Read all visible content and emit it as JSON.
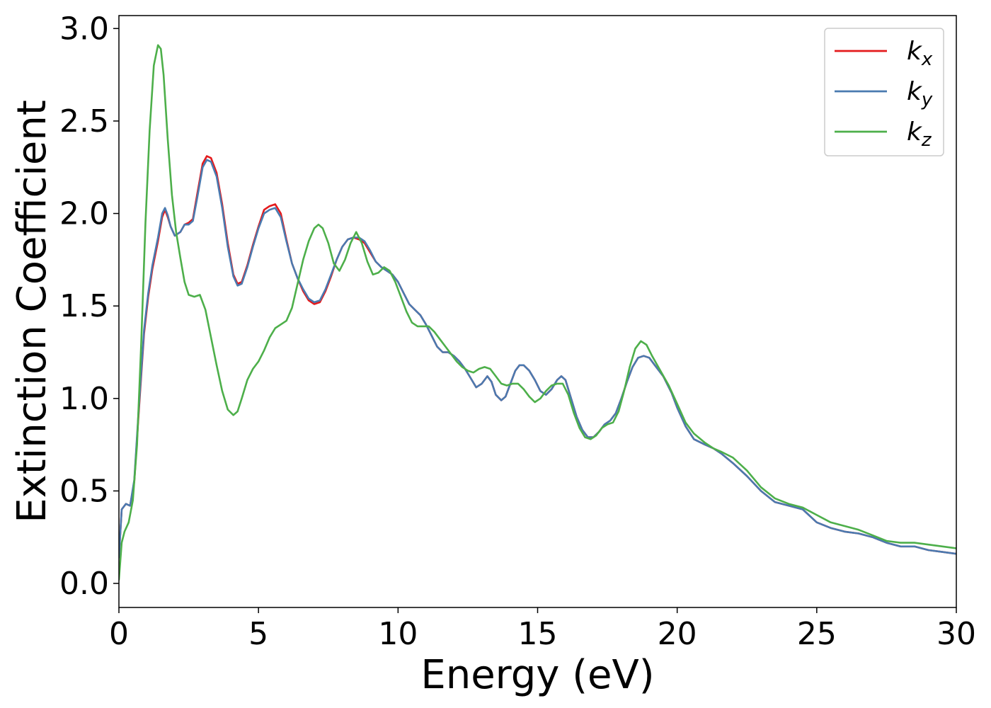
{
  "chart_data": {
    "type": "line",
    "title": "",
    "xlabel": "Energy (eV)",
    "ylabel": "Extinction Coefficient",
    "xlim": [
      0,
      30
    ],
    "ylim": [
      -0.13,
      3.07
    ],
    "xticks": [
      0,
      5,
      10,
      15,
      20,
      25,
      30
    ],
    "yticks": [
      0.0,
      0.5,
      1.0,
      1.5,
      2.0,
      2.5,
      3.0
    ],
    "xtick_labels": [
      "0",
      "5",
      "10",
      "15",
      "20",
      "25",
      "30"
    ],
    "ytick_labels": [
      "0.0",
      "0.5",
      "1.0",
      "1.5",
      "2.0",
      "2.5",
      "3.0"
    ],
    "grid": false,
    "legend_position": "top-right",
    "series": [
      {
        "name": "k",
        "subscript": "x",
        "color": "#e41a1c",
        "x": [
          0,
          0.1,
          0.25,
          0.4,
          0.55,
          0.7,
          0.9,
          1.05,
          1.2,
          1.4,
          1.55,
          1.65,
          1.75,
          1.85,
          2.0,
          2.2,
          2.35,
          2.5,
          2.65,
          2.8,
          3.0,
          3.15,
          3.3,
          3.5,
          3.7,
          3.9,
          4.1,
          4.25,
          4.4,
          4.6,
          4.8,
          5.0,
          5.2,
          5.4,
          5.6,
          5.8,
          6.0,
          6.2,
          6.4,
          6.6,
          6.8,
          7.0,
          7.2,
          7.4,
          7.6,
          7.8,
          8.0,
          8.2,
          8.4,
          8.6,
          8.8,
          9.0,
          9.2,
          9.4,
          9.6,
          9.8,
          10.0,
          10.2,
          10.4,
          10.6,
          10.8,
          11.0,
          11.2,
          11.4,
          11.6,
          11.8,
          12.0,
          12.2,
          12.4,
          12.6,
          12.8,
          13.0,
          13.2,
          13.35,
          13.5,
          13.7,
          13.85,
          14.0,
          14.2,
          14.35,
          14.5,
          14.7,
          14.9,
          15.1,
          15.3,
          15.5,
          15.7,
          15.85,
          16.0,
          16.2,
          16.4,
          16.6,
          16.8,
          17.0,
          17.2,
          17.4,
          17.6,
          17.8,
          18.0,
          18.2,
          18.4,
          18.6,
          18.8,
          19.0,
          19.2,
          19.5,
          19.8,
          20.0,
          20.3,
          20.6,
          21.0,
          21.3,
          21.6,
          22.0,
          22.5,
          23.0,
          23.5,
          24.0,
          24.5,
          25.0,
          25.5,
          26.0,
          26.5,
          27.0,
          27.5,
          28.0,
          28.5,
          29.0,
          29.5,
          30.0
        ],
        "y": [
          0.14,
          0.4,
          0.43,
          0.42,
          0.55,
          0.9,
          1.35,
          1.55,
          1.7,
          1.85,
          1.98,
          2.02,
          1.98,
          1.93,
          1.88,
          1.9,
          1.94,
          1.95,
          1.97,
          2.1,
          2.27,
          2.31,
          2.3,
          2.22,
          2.05,
          1.84,
          1.67,
          1.62,
          1.63,
          1.72,
          1.83,
          1.93,
          2.02,
          2.04,
          2.05,
          2.0,
          1.86,
          1.73,
          1.65,
          1.58,
          1.53,
          1.51,
          1.52,
          1.58,
          1.66,
          1.75,
          1.82,
          1.86,
          1.87,
          1.86,
          1.84,
          1.79,
          1.74,
          1.71,
          1.69,
          1.67,
          1.63,
          1.57,
          1.51,
          1.48,
          1.45,
          1.4,
          1.34,
          1.28,
          1.25,
          1.25,
          1.23,
          1.2,
          1.16,
          1.11,
          1.06,
          1.08,
          1.12,
          1.09,
          1.02,
          0.99,
          1.01,
          1.07,
          1.15,
          1.18,
          1.18,
          1.15,
          1.1,
          1.04,
          1.02,
          1.05,
          1.1,
          1.12,
          1.1,
          1.0,
          0.9,
          0.83,
          0.79,
          0.79,
          0.82,
          0.86,
          0.88,
          0.92,
          1.0,
          1.09,
          1.17,
          1.22,
          1.23,
          1.22,
          1.18,
          1.12,
          1.03,
          0.95,
          0.85,
          0.78,
          0.75,
          0.73,
          0.7,
          0.65,
          0.58,
          0.5,
          0.44,
          0.42,
          0.4,
          0.33,
          0.3,
          0.28,
          0.27,
          0.25,
          0.22,
          0.2,
          0.2,
          0.18,
          0.17,
          0.16
        ]
      },
      {
        "name": "k",
        "subscript": "y",
        "color": "#4a7ab0",
        "x": [
          0,
          0.1,
          0.25,
          0.4,
          0.55,
          0.7,
          0.9,
          1.05,
          1.2,
          1.4,
          1.55,
          1.65,
          1.75,
          1.85,
          2.0,
          2.2,
          2.35,
          2.5,
          2.65,
          2.8,
          3.0,
          3.15,
          3.3,
          3.5,
          3.7,
          3.9,
          4.1,
          4.25,
          4.4,
          4.6,
          4.8,
          5.0,
          5.2,
          5.4,
          5.6,
          5.8,
          6.0,
          6.2,
          6.4,
          6.6,
          6.8,
          7.0,
          7.2,
          7.4,
          7.6,
          7.8,
          8.0,
          8.2,
          8.4,
          8.6,
          8.8,
          9.0,
          9.2,
          9.4,
          9.6,
          9.8,
          10.0,
          10.2,
          10.4,
          10.6,
          10.8,
          11.0,
          11.2,
          11.4,
          11.6,
          11.8,
          12.0,
          12.2,
          12.4,
          12.6,
          12.8,
          13.0,
          13.2,
          13.35,
          13.5,
          13.7,
          13.85,
          14.0,
          14.2,
          14.35,
          14.5,
          14.7,
          14.9,
          15.1,
          15.3,
          15.5,
          15.7,
          15.85,
          16.0,
          16.2,
          16.4,
          16.6,
          16.8,
          17.0,
          17.2,
          17.4,
          17.6,
          17.8,
          18.0,
          18.2,
          18.4,
          18.6,
          18.8,
          19.0,
          19.2,
          19.5,
          19.8,
          20.0,
          20.3,
          20.6,
          21.0,
          21.3,
          21.6,
          22.0,
          22.5,
          23.0,
          23.5,
          24.0,
          24.5,
          25.0,
          25.5,
          26.0,
          26.5,
          27.0,
          27.5,
          28.0,
          28.5,
          29.0,
          29.5,
          30.0
        ],
        "y": [
          0.14,
          0.4,
          0.43,
          0.42,
          0.56,
          0.92,
          1.37,
          1.57,
          1.72,
          1.87,
          2.0,
          2.03,
          1.99,
          1.93,
          1.88,
          1.9,
          1.94,
          1.94,
          1.96,
          2.08,
          2.25,
          2.29,
          2.28,
          2.2,
          2.03,
          1.82,
          1.66,
          1.61,
          1.62,
          1.71,
          1.82,
          1.92,
          2.0,
          2.02,
          2.03,
          1.98,
          1.85,
          1.73,
          1.65,
          1.59,
          1.54,
          1.52,
          1.53,
          1.59,
          1.67,
          1.75,
          1.82,
          1.86,
          1.87,
          1.87,
          1.85,
          1.8,
          1.74,
          1.71,
          1.69,
          1.67,
          1.63,
          1.57,
          1.51,
          1.48,
          1.45,
          1.4,
          1.34,
          1.28,
          1.25,
          1.25,
          1.23,
          1.2,
          1.16,
          1.11,
          1.06,
          1.08,
          1.12,
          1.09,
          1.02,
          0.99,
          1.01,
          1.07,
          1.15,
          1.18,
          1.18,
          1.15,
          1.1,
          1.04,
          1.02,
          1.05,
          1.1,
          1.12,
          1.1,
          1.0,
          0.9,
          0.83,
          0.79,
          0.79,
          0.82,
          0.86,
          0.88,
          0.92,
          1.0,
          1.09,
          1.17,
          1.22,
          1.23,
          1.22,
          1.18,
          1.12,
          1.03,
          0.95,
          0.85,
          0.78,
          0.75,
          0.73,
          0.7,
          0.65,
          0.58,
          0.5,
          0.44,
          0.42,
          0.4,
          0.33,
          0.3,
          0.28,
          0.27,
          0.25,
          0.22,
          0.2,
          0.2,
          0.18,
          0.17,
          0.16
        ]
      },
      {
        "name": "k",
        "subscript": "z",
        "color": "#4daf4a",
        "x": [
          0,
          0.1,
          0.2,
          0.35,
          0.5,
          0.65,
          0.8,
          0.95,
          1.1,
          1.25,
          1.4,
          1.5,
          1.6,
          1.75,
          1.9,
          2.05,
          2.2,
          2.35,
          2.5,
          2.7,
          2.9,
          3.1,
          3.3,
          3.5,
          3.7,
          3.9,
          4.1,
          4.25,
          4.4,
          4.6,
          4.8,
          5.0,
          5.2,
          5.4,
          5.6,
          5.8,
          6.0,
          6.2,
          6.4,
          6.6,
          6.8,
          7.0,
          7.15,
          7.3,
          7.5,
          7.7,
          7.9,
          8.1,
          8.3,
          8.5,
          8.7,
          8.9,
          9.1,
          9.3,
          9.5,
          9.7,
          9.9,
          10.1,
          10.3,
          10.5,
          10.7,
          10.9,
          11.1,
          11.3,
          11.5,
          11.7,
          11.9,
          12.1,
          12.3,
          12.5,
          12.7,
          12.9,
          13.1,
          13.3,
          13.5,
          13.7,
          13.9,
          14.1,
          14.3,
          14.5,
          14.7,
          14.9,
          15.1,
          15.3,
          15.5,
          15.7,
          15.9,
          16.1,
          16.3,
          16.5,
          16.7,
          16.9,
          17.1,
          17.3,
          17.5,
          17.7,
          17.9,
          18.1,
          18.3,
          18.5,
          18.7,
          18.9,
          19.1,
          19.4,
          19.7,
          20.0,
          20.3,
          20.6,
          21.0,
          21.3,
          21.6,
          22.0,
          22.5,
          23.0,
          23.5,
          24.0,
          24.5,
          25.0,
          25.5,
          26.0,
          26.5,
          27.0,
          27.5,
          28.0,
          28.5,
          29.0,
          29.5,
          30.0
        ],
        "y": [
          0.02,
          0.22,
          0.28,
          0.33,
          0.45,
          0.75,
          1.3,
          1.95,
          2.45,
          2.8,
          2.91,
          2.89,
          2.75,
          2.4,
          2.1,
          1.9,
          1.76,
          1.63,
          1.56,
          1.55,
          1.56,
          1.48,
          1.33,
          1.18,
          1.04,
          0.94,
          0.91,
          0.93,
          1.0,
          1.1,
          1.16,
          1.2,
          1.26,
          1.33,
          1.38,
          1.4,
          1.42,
          1.49,
          1.62,
          1.75,
          1.85,
          1.92,
          1.94,
          1.92,
          1.84,
          1.73,
          1.69,
          1.75,
          1.84,
          1.9,
          1.84,
          1.74,
          1.67,
          1.68,
          1.71,
          1.69,
          1.63,
          1.55,
          1.47,
          1.41,
          1.39,
          1.39,
          1.39,
          1.36,
          1.32,
          1.28,
          1.24,
          1.2,
          1.17,
          1.15,
          1.14,
          1.16,
          1.17,
          1.16,
          1.12,
          1.08,
          1.07,
          1.08,
          1.08,
          1.05,
          1.01,
          0.98,
          1.0,
          1.04,
          1.07,
          1.08,
          1.08,
          1.02,
          0.92,
          0.84,
          0.79,
          0.78,
          0.8,
          0.84,
          0.86,
          0.87,
          0.93,
          1.04,
          1.17,
          1.27,
          1.31,
          1.29,
          1.23,
          1.15,
          1.07,
          0.97,
          0.87,
          0.81,
          0.76,
          0.73,
          0.71,
          0.68,
          0.61,
          0.52,
          0.46,
          0.43,
          0.41,
          0.37,
          0.33,
          0.31,
          0.29,
          0.26,
          0.23,
          0.22,
          0.22,
          0.21,
          0.2,
          0.19
        ]
      }
    ]
  }
}
